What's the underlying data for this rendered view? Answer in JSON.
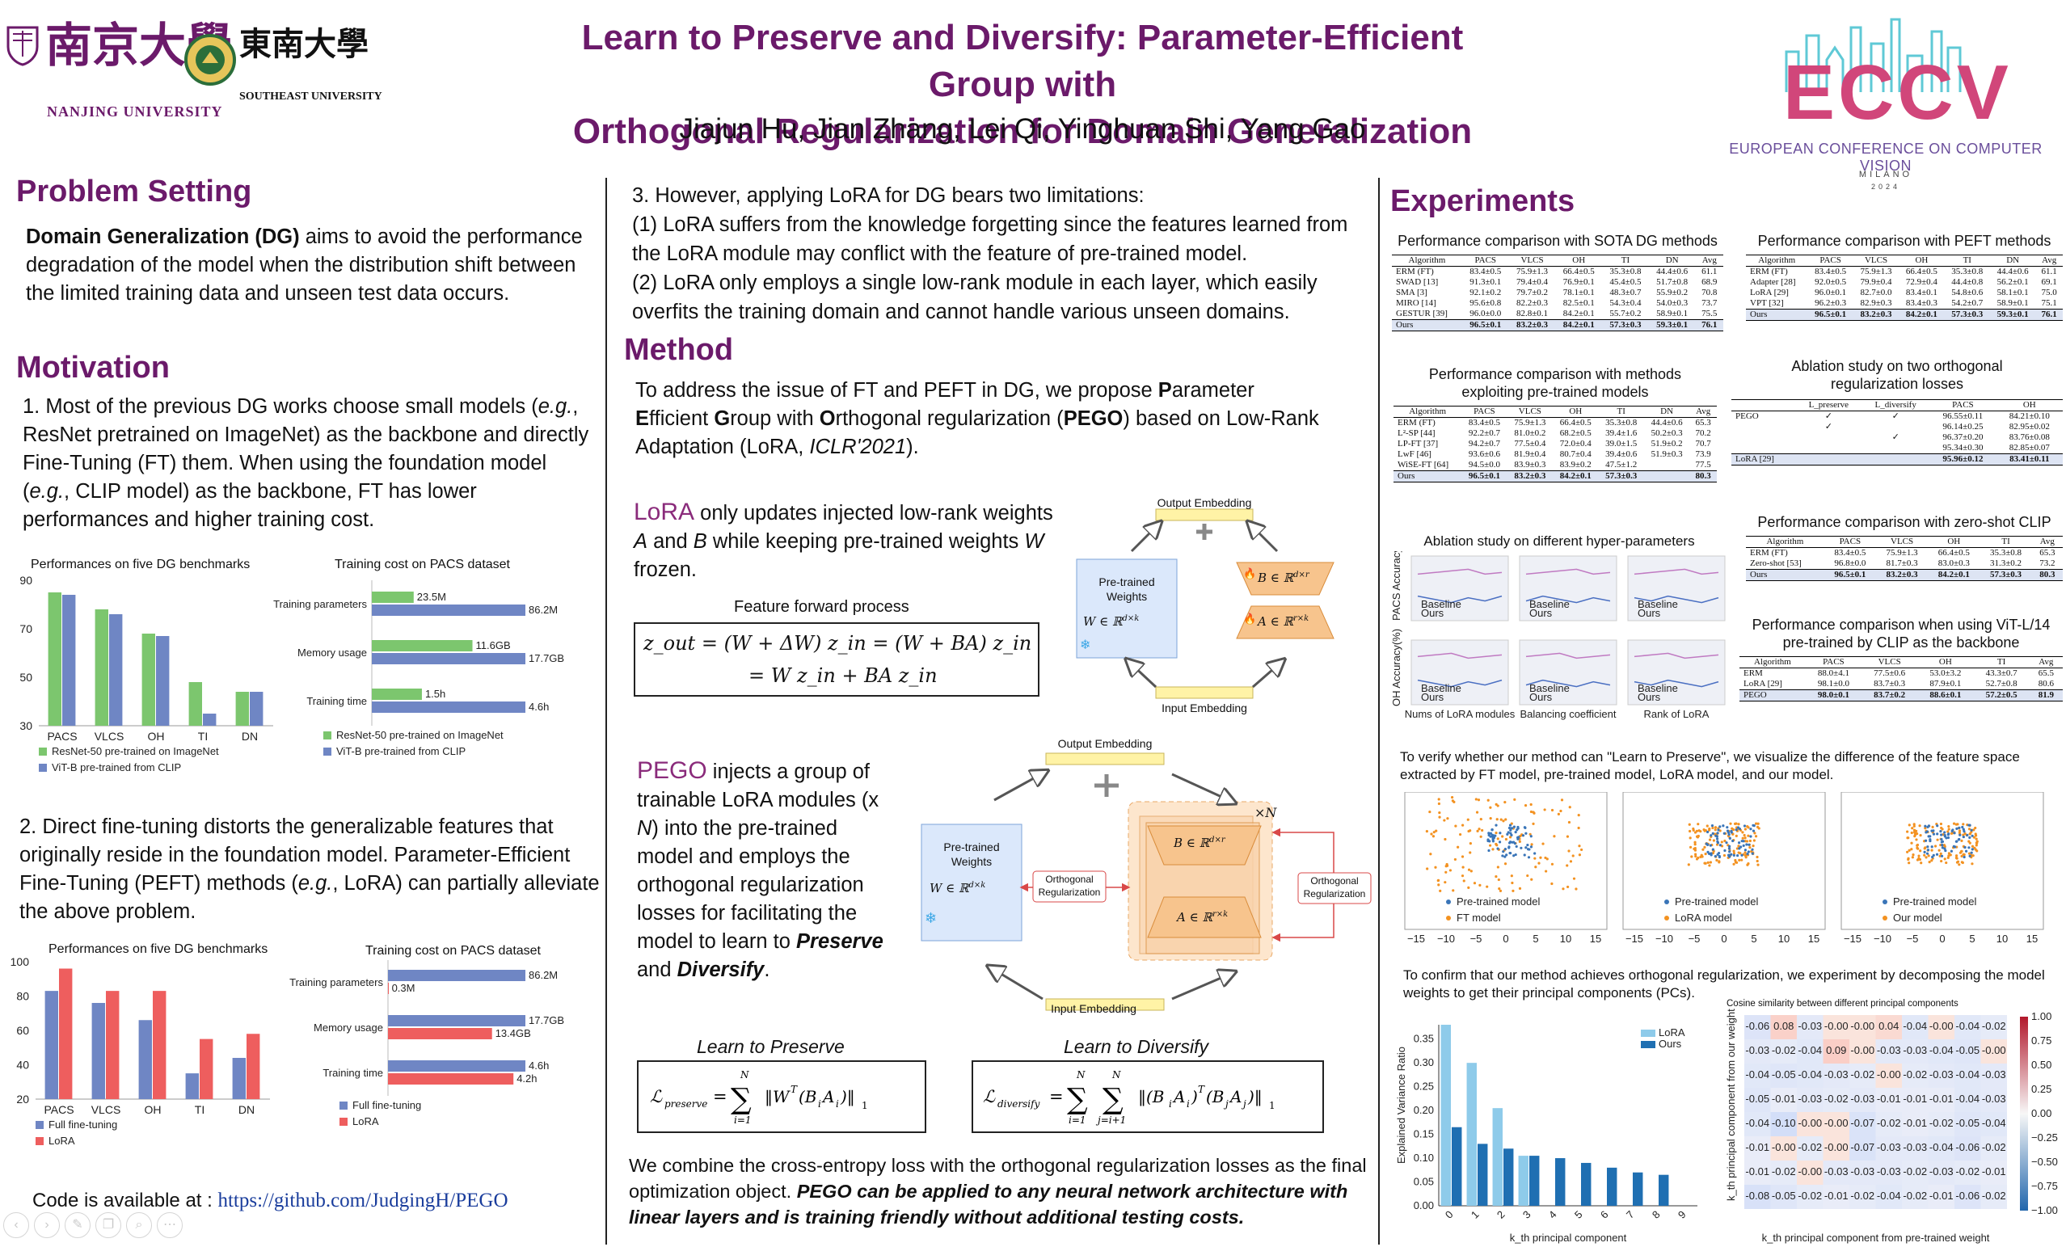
{
  "header": {
    "nju_cn": "南京大學",
    "nju_en": "NANJING UNIVERSITY",
    "seu_cn": "東南大學",
    "seu_en": "SOUTHEAST UNIVERSITY",
    "title_line1": "Learn to Preserve and Diversify: Parameter-Efficient Group with",
    "title_line2": "Orthogonal Regularization for Domain Generalization",
    "authors": "Jiajun Hu, Jian Zhang, Lei Qi, Yinghuan Shi, Yang Gao",
    "eccv_logo": "ECCV",
    "eccv_name": "EUROPEAN CONFERENCE ON COMPUTER VISION",
    "eccv_city": "MILANO",
    "eccv_year": "2024"
  },
  "left": {
    "problem_heading": "Problem Setting",
    "problem_bold": "Domain Generalization (DG)",
    "problem_text": " aims to avoid the performance degradation of the model when the distribution shift between the limited training data and unseen test data occurs.",
    "motivation_heading": "Motivation",
    "mot1_a": "1. Most of the previous DG works choose small models (",
    "mot1_eg1": "e.g.",
    "mot1_b": ", ResNet pretrained on ImageNet) as the backbone and directly Fine-Tuning (FT) them. When using the foundation model (",
    "mot1_eg2": "e.g.",
    "mot1_c": ", CLIP model) as the backbone, FT has lower performances and higher training cost.",
    "mot2_a": "2. Direct fine-tuning distorts the generalizable features that originally reside in the foundation model. Parameter-Efficient Fine-Tuning (PEFT) methods (",
    "mot2_eg": "e.g.",
    "mot2_b": ", LoRA) can partially alleviate the above problem.",
    "code_label": "Code is available at : ",
    "code_url": "https://github.com/JudgingH/PEGO"
  },
  "charts": {
    "c1": {
      "title": "Performances on five DG benchmarks",
      "type": "bar",
      "categories": [
        "PACS",
        "VLCS",
        "OH",
        "TI",
        "DN"
      ],
      "yticks": [
        "30",
        "50",
        "70",
        "90"
      ],
      "ylim": [
        30,
        90
      ],
      "series": [
        {
          "name": "ResNet-50 pre-trained on ImageNet",
          "color": "#7cc66e",
          "values": [
            85,
            78,
            68,
            48,
            44
          ]
        },
        {
          "name": "ViT-B pre-trained from CLIP",
          "color": "#6f86c4",
          "values": [
            84,
            76,
            67,
            35,
            44
          ]
        }
      ]
    },
    "c2": {
      "title": "Training cost on PACS dataset",
      "type": "bar",
      "categories": [
        "Training parameters",
        "Memory usage",
        "Training time"
      ],
      "series": [
        {
          "name": "ResNet-50 pre-trained on ImageNet",
          "color": "#7cc66e",
          "values": [
            23.5,
            11.6,
            1.5
          ],
          "labels": [
            "23.5M",
            "11.6GB",
            "1.5h"
          ]
        },
        {
          "name": "ViT-B pre-trained from CLIP",
          "color": "#6f86c4",
          "values": [
            86.2,
            17.7,
            4.6
          ],
          "labels": [
            "86.2M",
            "17.7GB",
            "4.6h"
          ]
        }
      ],
      "scale_max": [
        86.2,
        17.7,
        4.6
      ]
    },
    "c3": {
      "title": "Performances on five DG benchmarks",
      "type": "bar",
      "categories": [
        "PACS",
        "VLCS",
        "OH",
        "TI",
        "DN"
      ],
      "yticks": [
        "20",
        "40",
        "60",
        "80",
        "100"
      ],
      "ylim": [
        20,
        100
      ],
      "series": [
        {
          "name": "Full fine-tuning",
          "color": "#6f86c4",
          "values": [
            83,
            76,
            66,
            35,
            44
          ]
        },
        {
          "name": "LoRA",
          "color": "#ee5e5e",
          "values": [
            96,
            83,
            83,
            55,
            58
          ]
        }
      ]
    },
    "c4": {
      "title": "Training cost on PACS dataset",
      "type": "bar",
      "categories": [
        "Training parameters",
        "Memory usage",
        "Training time"
      ],
      "series": [
        {
          "name": "Full fine-tuning",
          "color": "#6f86c4",
          "values": [
            86.2,
            17.7,
            4.6
          ],
          "labels": [
            "86.2M",
            "17.7GB",
            "4.6h"
          ]
        },
        {
          "name": "LoRA",
          "color": "#ee5e5e",
          "values": [
            0.3,
            13.4,
            4.2
          ],
          "labels": [
            "0.3M",
            "13.4GB",
            "4.2h"
          ]
        }
      ],
      "scale_max": [
        86.2,
        17.7,
        4.6
      ]
    }
  },
  "middle": {
    "limits_intro": "3. However, applying LoRA for DG bears two limitations:",
    "limit1": "(1) LoRA suffers from the knowledge forgetting since the features learned from the LoRA module may conflict with the feature of pre-trained model.",
    "limit2": "(2) LoRA only employs a single low-rank module in each layer, which easily overfits the training domain and cannot handle various unseen domains.",
    "method_heading": "Method",
    "method_a": "To address the issue of FT and PEFT in DG, we propose ",
    "method_P": "P",
    "method_b": "arameter ",
    "method_E": "E",
    "method_c": "fficient ",
    "method_G": "G",
    "method_d": "roup with ",
    "method_O": "O",
    "method_e": "rthogonal regularization (",
    "method_PEGO": "PEGO",
    "method_f": ") based on Low-Rank Adaptation (LoRA, ",
    "method_iclr": "ICLR'2021",
    "method_g": ").",
    "lora_word": "LoRA",
    "lora_text1": " only updates injected low-rank weights ",
    "lora_A": "A",
    "lora_and": " and ",
    "lora_B": "B",
    "lora_text2": " while keeping pre-trained weights ",
    "lora_W": "W",
    "lora_text3": " frozen.",
    "ffp_title": "Feature forward process",
    "formula_line1": "z_out = (W + ΔW) z_in = (W + BA) z_in",
    "formula_line2": "= W z_in + BA z_in",
    "pego_word": "PEGO",
    "pego_text1": " injects a group of trainable LoRA modules (x ",
    "pego_N": "N",
    "pego_text2": ") into the pre-trained model and employs the orthogonal regularization losses for facilitating the model to learn to ",
    "pego_preserve": "Preserve",
    "pego_and": " and ",
    "pego_diversify": "Diversify",
    "pego_end": ".",
    "preserve_title": "Learn to Preserve",
    "diversify_title": "Learn to Diversify",
    "closing_a": "We combine the cross-entropy loss with the orthogonal regularization losses as the final optimization object. ",
    "closing_b": "PEGO can be applied to any neural network architecture with linear layers and is training friendly without additional testing costs.",
    "diag1": {
      "output": "Output Embedding",
      "input": "Input Embedding",
      "pretrained1": "Pre-trained",
      "pretrained2": "Weights",
      "W": "W ∈ ℝ",
      "Wsup": "d×k",
      "B": "B ∈ ℝ",
      "Bsup": "d×r",
      "A": "A ∈ ℝ",
      "Asup": "r×k"
    },
    "diag2": {
      "output": "Output Embedding",
      "input": "Input Embedding",
      "pretrained1": "Pre-trained",
      "pretrained2": "Weights",
      "W": "W ∈ ℝ",
      "Wsup": "d×k",
      "B": "B ∈ ℝ",
      "Bsup": "d×r",
      "A": "A ∈ ℝ",
      "Asup": "r×k",
      "ortho1": "Orthogonal",
      "ortho2": "Regularization",
      "timesN": "×N"
    }
  },
  "right": {
    "exp_heading": "Experiments",
    "t1": {
      "title": "Performance comparison with SOTA DG methods",
      "headers": [
        "Algorithm",
        "PACS",
        "VLCS",
        "OH",
        "TI",
        "DN",
        "Avg"
      ],
      "rows": [
        [
          "ERM (FT)",
          "83.4±0.5",
          "75.9±1.3",
          "66.4±0.5",
          "35.3±0.8",
          "44.4±0.6",
          "61.1"
        ],
        [
          "SWAD [13]",
          "91.3±0.1",
          "79.4±0.4",
          "76.9±0.1",
          "45.4±0.5",
          "51.7±0.8",
          "68.9"
        ],
        [
          "SMA [3]",
          "92.1±0.2",
          "79.7±0.2",
          "78.1±0.1",
          "48.3±0.7",
          "55.9±0.2",
          "70.8"
        ],
        [
          "MIRO [14]",
          "95.6±0.8",
          "82.2±0.3",
          "82.5±0.1",
          "54.3±0.4",
          "54.0±0.3",
          "73.7"
        ],
        [
          "GESTUR [39]",
          "96.0±0.0",
          "82.8±0.1",
          "84.2±0.1",
          "55.7±0.2",
          "58.9±0.1",
          "75.5"
        ]
      ],
      "last": [
        "Ours",
        "96.5±0.1",
        "83.2±0.3",
        "84.2±0.1",
        "57.3±0.3",
        "59.3±0.1",
        "76.1"
      ]
    },
    "t2": {
      "title": "Performance comparison with PEFT methods",
      "headers": [
        "Algorithm",
        "PACS",
        "VLCS",
        "OH",
        "TI",
        "DN",
        "Avg"
      ],
      "rows": [
        [
          "ERM (FT)",
          "83.4±0.5",
          "75.9±1.3",
          "66.4±0.5",
          "35.3±0.8",
          "44.4±0.6",
          "61.1"
        ],
        [
          "Adapter [28]",
          "92.0±0.5",
          "79.9±0.4",
          "72.9±0.4",
          "44.4±0.8",
          "56.2±0.1",
          "69.1"
        ],
        [
          "LoRA [29]",
          "96.0±0.1",
          "82.7±0.0",
          "83.4±0.1",
          "54.8±0.6",
          "58.1±0.1",
          "75.0"
        ],
        [
          "VPT [32]",
          "96.2±0.3",
          "82.9±0.3",
          "83.4±0.3",
          "54.2±0.7",
          "58.9±0.1",
          "75.1"
        ]
      ],
      "last": [
        "Ours",
        "96.5±0.1",
        "83.2±0.3",
        "84.2±0.1",
        "57.3±0.3",
        "59.3±0.1",
        "76.1"
      ]
    },
    "t3": {
      "title": "Performance comparison with methods exploiting pre-trained models",
      "headers": [
        "Algorithm",
        "PACS",
        "VLCS",
        "OH",
        "TI",
        "DN",
        "Avg"
      ],
      "rows": [
        [
          "ERM (FT)",
          "83.4±0.5",
          "75.9±1.3",
          "66.4±0.5",
          "35.3±0.8",
          "44.4±0.6",
          "65.3"
        ],
        [
          "L²-SP [44]",
          "92.2±0.7",
          "81.0±0.2",
          "68.2±0.5",
          "39.4±1.6",
          "50.2±0.3",
          "70.2"
        ],
        [
          "LP-FT [37]",
          "94.2±0.7",
          "77.5±0.4",
          "72.0±0.4",
          "39.0±1.5",
          "51.9±0.2",
          "70.7"
        ],
        [
          "LwF [46]",
          "93.6±0.6",
          "81.9±0.4",
          "80.7±0.4",
          "39.4±0.6",
          "51.9±0.3",
          "73.9"
        ],
        [
          "WiSE-FT [64]",
          "94.5±0.0",
          "83.9±0.3",
          "83.9±0.2",
          "47.5±1.2",
          "",
          "77.5"
        ]
      ],
      "last": [
        "Ours",
        "96.5±0.1",
        "83.2±0.3",
        "84.2±0.1",
        "57.3±0.3",
        "",
        "80.3"
      ]
    },
    "t4": {
      "title": "Ablation study on two orthogonal regularization losses",
      "headers": [
        "",
        "L_preserve",
        "L_diversify",
        "PACS",
        "OH"
      ],
      "rows": [
        [
          "PEGO",
          "✓",
          "✓",
          "96.55±0.11",
          "84.21±0.10"
        ],
        [
          "",
          "✓",
          "",
          "96.14±0.25",
          "82.95±0.02"
        ],
        [
          "",
          "",
          "✓",
          "96.37±0.20",
          "83.76±0.08"
        ],
        [
          "",
          "",
          "",
          "95.34±0.30",
          "82.85±0.07"
        ]
      ],
      "last": [
        "LoRA [29]",
        "",
        "",
        "95.96±0.12",
        "83.41±0.11"
      ]
    },
    "t5": {
      "title": "Performance comparison with zero-shot CLIP",
      "headers": [
        "Algorithm",
        "PACS",
        "VLCS",
        "OH",
        "TI",
        "Avg"
      ],
      "rows": [
        [
          "ERM (FT)",
          "83.4±0.5",
          "75.9±1.3",
          "66.4±0.5",
          "35.3±0.8",
          "65.3"
        ],
        [
          "Zero-shot [53]",
          "96.8±0.0",
          "81.7±0.3",
          "83.0±0.3",
          "31.3±0.2",
          "73.2"
        ]
      ],
      "last": [
        "Ours",
        "96.5±0.1",
        "83.2±0.3",
        "84.2±0.1",
        "57.3±0.3",
        "80.3"
      ]
    },
    "t6": {
      "title": "Performance comparison when using ViT-L/14 pre-trained by CLIP as the backbone",
      "headers": [
        "Algorithm",
        "PACS",
        "VLCS",
        "OH",
        "TI",
        "Avg"
      ],
      "rows": [
        [
          "ERM",
          "88.0±4.1",
          "77.5±0.6",
          "53.0±3.2",
          "43.3±0.7",
          "65.5"
        ],
        [
          "LoRA [29]",
          "98.1±0.0",
          "83.7±0.3",
          "87.9±0.1",
          "52.7±0.8",
          "80.6"
        ]
      ],
      "last": [
        "PEGO",
        "98.0±0.1",
        "83.7±0.2",
        "88.6±0.1",
        "57.2±0.5",
        "81.9"
      ]
    },
    "hyper": {
      "title": "Ablation study on different hyper-parameters",
      "xlabels": [
        "Nums of LoRA modules",
        "Balancing coefficient",
        "Rank of LoRA"
      ],
      "ylabel_top": "PACS Accuracy(%)",
      "ylabel_bot": "OH Accuracy(%)",
      "legend_base": "Baseline",
      "legend_ours": "Ours"
    },
    "viz_text": "To verify whether our method can \"Learn to Preserve\", we visualize the difference of the feature space extracted by FT model, pre-trained model, LoRA model, and our model.",
    "scatter": [
      {
        "a": "Pre-trained model",
        "b": "FT model"
      },
      {
        "a": "Pre-trained model",
        "b": "LoRA model"
      },
      {
        "a": "Pre-trained model",
        "b": "Our model"
      }
    ],
    "scatter_ticks": [
      "−15",
      "−10",
      "−5",
      "0",
      "5",
      "10",
      "15"
    ],
    "ortho_text": "To confirm that our method achieves orthogonal regularization, we experiment by decomposing the model weights to get their principal components (PCs).",
    "pc_chart": {
      "type": "bar",
      "xlabel": "k_th principal component",
      "ylabel": "Explained Variance Ratio",
      "categories": [
        "0",
        "1",
        "2",
        "3",
        "4",
        "5",
        "6",
        "7",
        "8",
        "9"
      ],
      "yticks": [
        "0.00",
        "0.05",
        "0.10",
        "0.15",
        "0.20",
        "0.25",
        "0.30",
        "0.35"
      ],
      "ylim": [
        0,
        0.38
      ],
      "series": [
        {
          "name": "LoRA",
          "color": "#8ecbea",
          "values": [
            0.38,
            0.3,
            0.205,
            0.105,
            0,
            0,
            0,
            0,
            0,
            0
          ]
        },
        {
          "name": "Ours",
          "color": "#1f6fb2",
          "values": [
            0.165,
            0.13,
            0.12,
            0.105,
            0.1,
            0.09,
            0.08,
            0.07,
            0.065,
            0
          ]
        }
      ]
    },
    "heatmap": {
      "title": "Cosine similarity between different principal components",
      "xlabel": "k_th principal component from pre-trained weight",
      "ylabel": "k_th principal component from our weight",
      "rows": [
        [
          "-0.06",
          "0.08",
          "-0.03",
          "-0.00",
          "-0.00",
          "0.04",
          "-0.04",
          "-0.00",
          "-0.04",
          "-0.02"
        ],
        [
          "-0.03",
          "-0.02",
          "-0.04",
          "0.09",
          "-0.00",
          "-0.03",
          "-0.03",
          "-0.04",
          "-0.05",
          "-0.00"
        ],
        [
          "-0.04",
          "-0.05",
          "-0.04",
          "-0.03",
          "-0.02",
          "-0.00",
          "-0.02",
          "-0.03",
          "-0.04",
          "-0.03"
        ],
        [
          "-0.05",
          "-0.01",
          "-0.03",
          "-0.02",
          "-0.03",
          "-0.01",
          "-0.01",
          "-0.01",
          "-0.04",
          "-0.03"
        ],
        [
          "-0.04",
          "-0.10",
          "-0.00",
          "-0.00",
          "-0.07",
          "-0.02",
          "-0.01",
          "-0.02",
          "-0.05",
          "-0.04"
        ],
        [
          "-0.01",
          "-0.00",
          "-0.02",
          "-0.00",
          "-0.07",
          "-0.03",
          "-0.03",
          "-0.04",
          "-0.06",
          "-0.02"
        ],
        [
          "-0.01",
          "-0.02",
          "-0.00",
          "-0.03",
          "-0.03",
          "-0.03",
          "-0.02",
          "-0.03",
          "-0.02",
          "-0.01"
        ],
        [
          "-0.08",
          "-0.05",
          "-0.02",
          "-0.01",
          "-0.02",
          "-0.04",
          "-0.02",
          "-0.01",
          "-0.06",
          "-0.02"
        ]
      ],
      "colorbar": [
        "1.00",
        "0.75",
        "0.50",
        "0.25",
        "0.00",
        "−0.25",
        "−0.50",
        "−0.75",
        "−1.00"
      ]
    }
  }
}
